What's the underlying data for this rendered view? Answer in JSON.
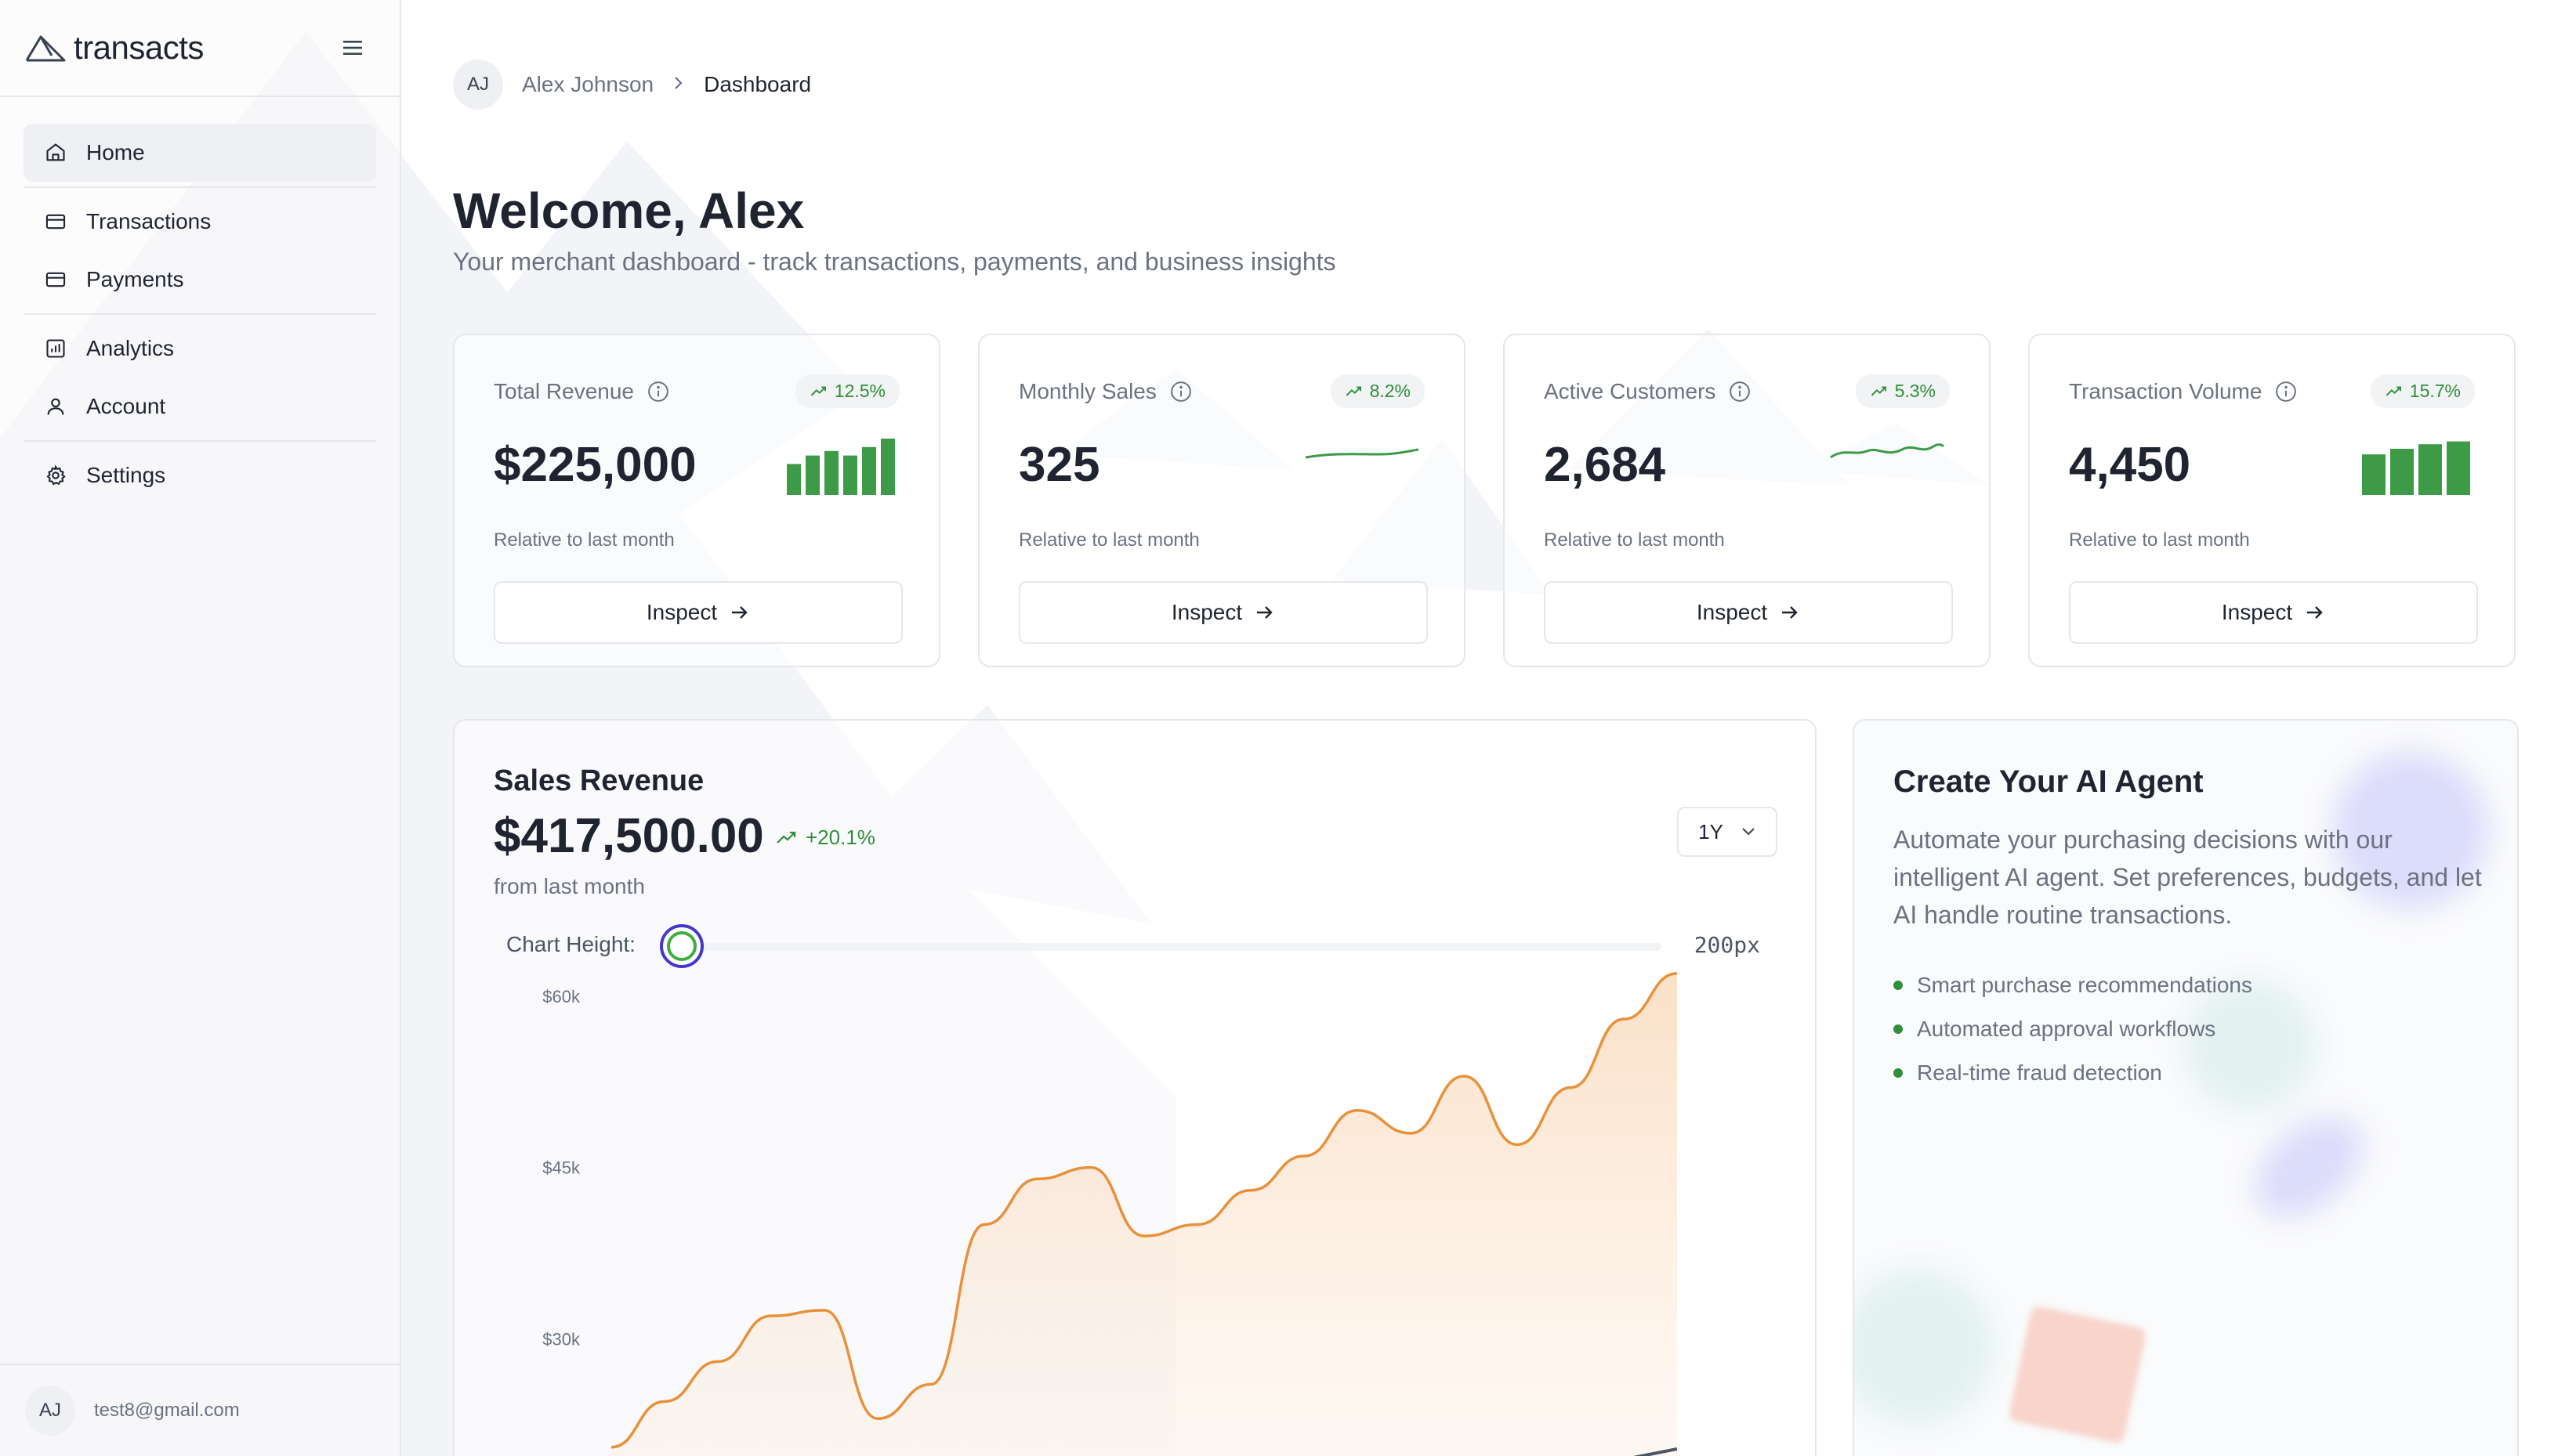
{
  "brand": {
    "name": "transacts",
    "logo_icon": "triangle-logo-icon"
  },
  "sidebar": {
    "groups": [
      [
        {
          "label": "Home",
          "icon": "home-icon",
          "active": true
        }
      ],
      [
        {
          "label": "Transactions",
          "icon": "card-icon"
        },
        {
          "label": "Payments",
          "icon": "card-icon"
        }
      ],
      [
        {
          "label": "Analytics",
          "icon": "bar-chart-icon"
        },
        {
          "label": "Account",
          "icon": "user-icon"
        }
      ],
      [
        {
          "label": "Settings",
          "icon": "gear-icon"
        }
      ]
    ],
    "footer": {
      "avatar": "AJ",
      "email": "test8@gmail.com"
    }
  },
  "breadcrumb": {
    "avatar": "AJ",
    "user": "Alex Johnson",
    "page": "Dashboard"
  },
  "header": {
    "title": "Welcome, Alex",
    "subtitle": "Your merchant dashboard - track transactions, payments, and business insights"
  },
  "stats": [
    {
      "label": "Total Revenue",
      "change": "12.5%",
      "value": "$225,000",
      "note": "Relative to last month",
      "button": "Inspect",
      "viz": "bars",
      "viz_levels": [
        0.55,
        0.7,
        0.78,
        0.7,
        0.85,
        1.0
      ]
    },
    {
      "label": "Monthly Sales",
      "change": "8.2%",
      "value": "325",
      "note": "Relative to last month",
      "button": "Inspect",
      "viz": "line-flat"
    },
    {
      "label": "Active Customers",
      "change": "5.3%",
      "value": "2,684",
      "note": "Relative to last month",
      "button": "Inspect",
      "viz": "line-wave"
    },
    {
      "label": "Transaction Volume",
      "change": "15.7%",
      "value": "4,450",
      "note": "Relative to last month",
      "button": "Inspect",
      "viz": "bars",
      "viz_levels": [
        0.72,
        0.82,
        0.9,
        0.95
      ]
    }
  ],
  "sales": {
    "title": "Sales Revenue",
    "value": "$417,500.00",
    "change": "+20.1%",
    "sub": "from last month",
    "range": "1Y",
    "height_label": "Chart Height:",
    "height_value": "200px",
    "height_level": 0
  },
  "chart_data": {
    "type": "area",
    "y_ticks": [
      "$60k",
      "$45k",
      "$30k"
    ],
    "ylim": [
      20000,
      60000
    ],
    "series": [
      {
        "values": [
          20500,
          24500,
          28000,
          32000,
          32500,
          23000,
          26000,
          40000,
          44000,
          45000,
          39000,
          40000,
          43000,
          46000,
          50000,
          48000,
          53000,
          47000,
          52000,
          58000,
          62000
        ]
      }
    ]
  },
  "ai": {
    "title": "Create Your AI Agent",
    "description": "Automate your purchasing decisions with our intelligent AI agent. Set preferences, budgets, and let AI handle routine transactions.",
    "features": [
      "Smart purchase recommendations",
      "Automated approval workflows",
      "Real-time fraud detection"
    ]
  },
  "colors": {
    "accent_green": "#2f8f3a",
    "chart_orange": "#e8913a",
    "slider_ring": "#4338ca"
  }
}
